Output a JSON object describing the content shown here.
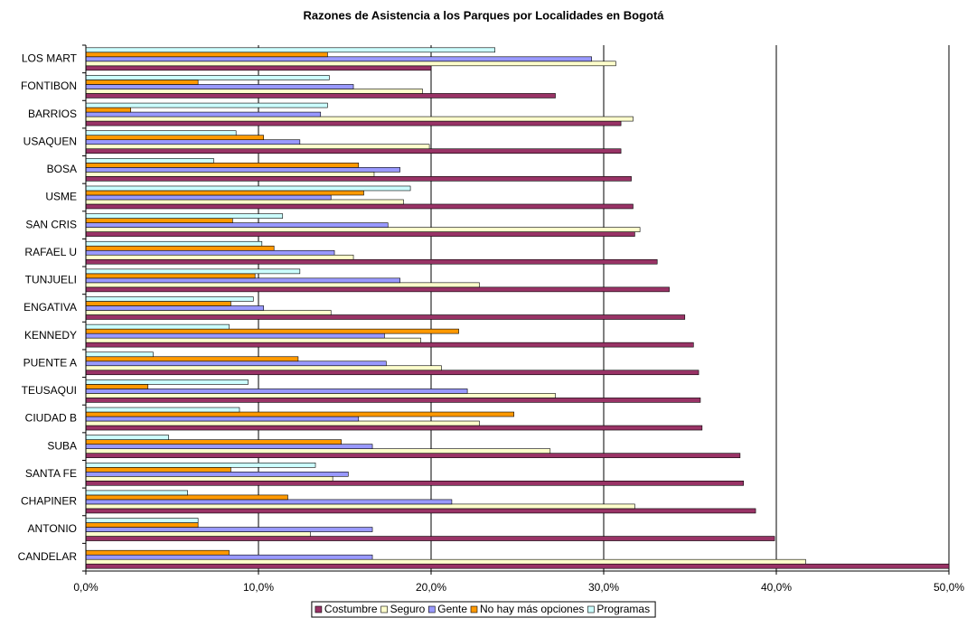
{
  "chart_data": {
    "type": "hbar",
    "title": "Razones de Asistencia a los Parques por Localidades en Bogotá",
    "categories": [
      "LOS MART",
      "FONTIBON",
      "BARRIOS",
      "USAQUEN",
      "BOSA",
      "USME",
      "SAN CRIS",
      "RAFAEL U",
      "TUNJUELI",
      "ENGATIVA",
      "KENNEDY",
      "PUENTE A",
      "TEUSAQUI",
      "CIUDAD B",
      "SUBA",
      "SANTA FE",
      "CHAPINER",
      "ANTONIO",
      "CANDELAR"
    ],
    "series": [
      {
        "name": "Costumbre",
        "color": "#993366",
        "values": [
          20.0,
          27.2,
          31.0,
          31.0,
          31.6,
          31.7,
          31.8,
          33.1,
          33.8,
          34.7,
          35.2,
          35.5,
          35.6,
          35.7,
          37.9,
          38.1,
          38.8,
          39.9,
          50.0
        ]
      },
      {
        "name": "Seguro",
        "color": "#ffffcc",
        "values": [
          30.7,
          19.5,
          31.7,
          19.9,
          16.7,
          18.4,
          32.1,
          15.5,
          22.8,
          14.2,
          19.4,
          20.6,
          27.2,
          22.8,
          26.9,
          14.3,
          31.8,
          13.0,
          41.7
        ]
      },
      {
        "name": "Gente",
        "color": "#9999ff",
        "values": [
          29.3,
          15.5,
          13.6,
          12.4,
          18.2,
          14.2,
          17.5,
          14.4,
          18.2,
          10.3,
          17.3,
          17.4,
          22.1,
          15.8,
          16.6,
          15.2,
          21.2,
          16.6,
          16.6
        ]
      },
      {
        "name": "No hay más opciones",
        "color": "#ff9900",
        "values": [
          14.0,
          6.5,
          2.6,
          10.3,
          15.8,
          16.1,
          8.5,
          10.9,
          9.8,
          8.4,
          21.6,
          12.3,
          3.6,
          24.8,
          14.8,
          8.4,
          11.7,
          6.5,
          8.3
        ]
      },
      {
        "name": "Programas",
        "color": "#ccffff",
        "values": [
          23.7,
          14.1,
          14.0,
          8.7,
          7.4,
          18.8,
          11.4,
          10.2,
          12.4,
          9.7,
          8.3,
          3.9,
          9.4,
          8.9,
          4.8,
          13.3,
          5.9,
          6.5,
          0
        ]
      }
    ],
    "xlim": [
      0,
      50
    ],
    "xticks": [
      {
        "value": 0,
        "label": "0,0%"
      },
      {
        "value": 10,
        "label": "10,0%"
      },
      {
        "value": 20,
        "label": "20,0%"
      },
      {
        "value": 30,
        "label": "30,0%"
      },
      {
        "value": 40,
        "label": "40,0%"
      },
      {
        "value": 50,
        "label": "50,0%"
      }
    ],
    "grid": true
  }
}
